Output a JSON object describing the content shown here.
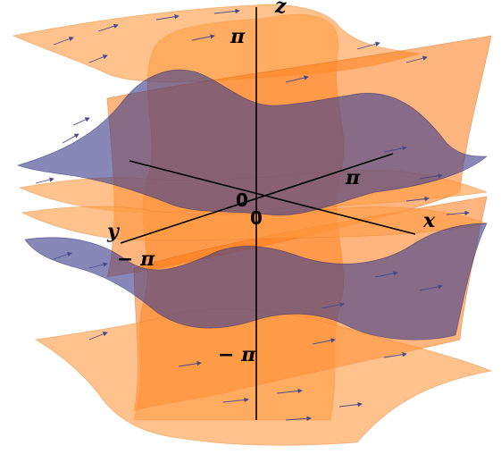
{
  "axes": {
    "x_label": "x",
    "y_label": "y",
    "z_label": "z"
  },
  "ticks": {
    "z_top": "π",
    "z_bottom": "− π",
    "x_pos": "π",
    "y_neg": "− π",
    "origin_a": "0",
    "origin_b": "0"
  },
  "colors": {
    "surface_orange": "#ff9d45",
    "surface_blue": "#3f3f8c",
    "vector_field": "#4a4a8a"
  }
}
